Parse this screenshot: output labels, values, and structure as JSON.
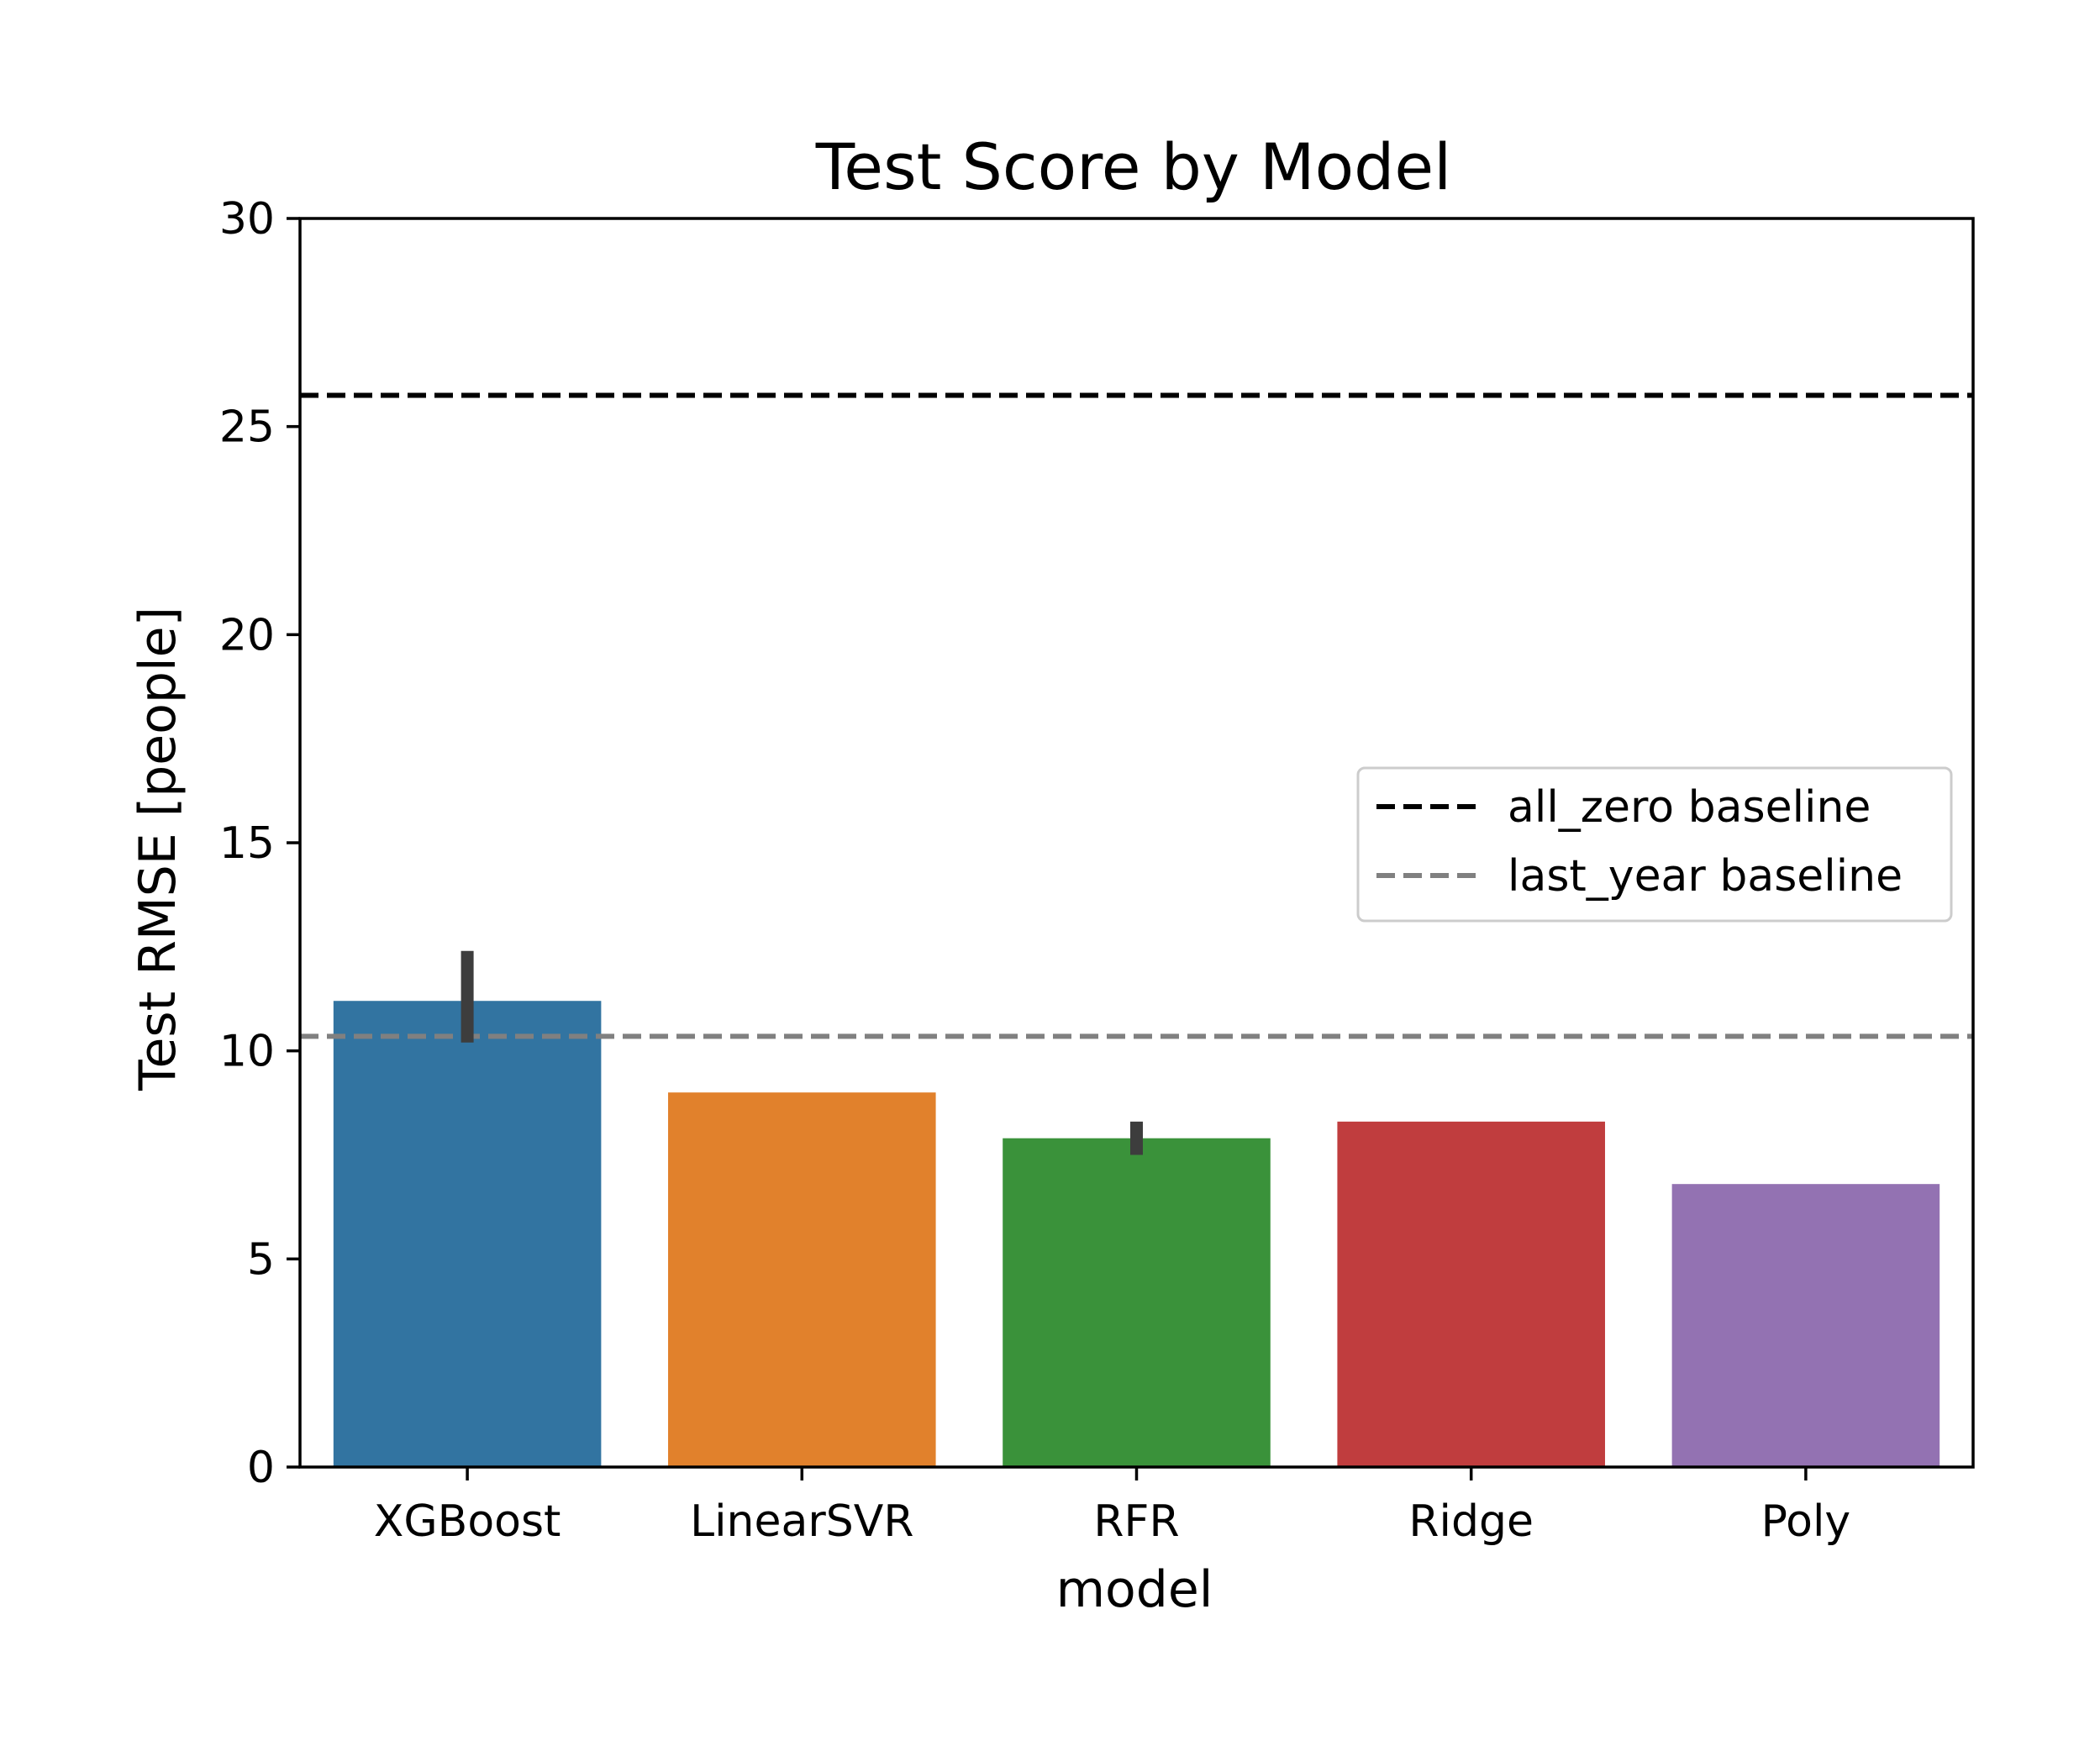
{
  "chart_data": {
    "type": "bar",
    "title": "Test Score by Model",
    "xlabel": "model",
    "ylabel": "Test RMSE [people]",
    "ylim": [
      0,
      30
    ],
    "yticks": [
      0,
      5,
      10,
      15,
      20,
      25,
      30
    ],
    "categories": [
      "XGBoost",
      "LinearSVR",
      "RFR",
      "Ridge",
      "Poly"
    ],
    "values": [
      11.2,
      9.0,
      7.9,
      8.3,
      6.8
    ],
    "error_bars": [
      {
        "low": 10.2,
        "high": 12.4
      },
      null,
      {
        "low": 7.5,
        "high": 8.3
      },
      null,
      null
    ],
    "colors": [
      "#3274a1",
      "#e1812c",
      "#3a923a",
      "#c03d3e",
      "#9372b2"
    ],
    "baselines": [
      {
        "name": "all_zero baseline",
        "value": 25.75,
        "color": "#000000",
        "style": "dashed"
      },
      {
        "name": "last_year baseline",
        "value": 10.35,
        "color": "#808080",
        "style": "dashed"
      }
    ],
    "legend": {
      "position": "center-right"
    },
    "grid": false
  }
}
